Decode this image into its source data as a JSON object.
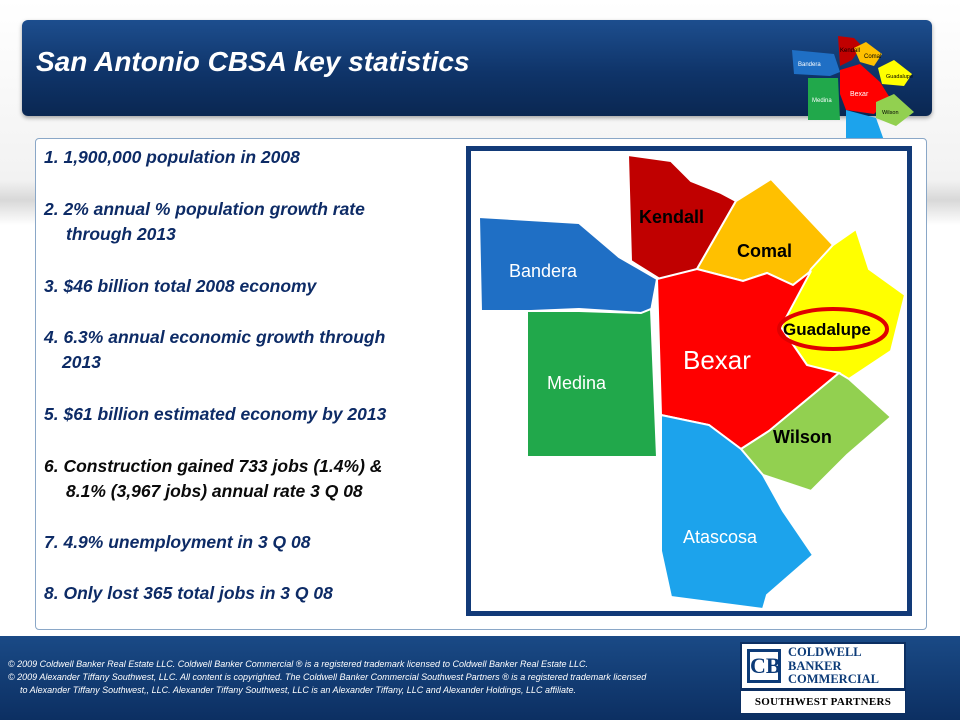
{
  "slide": {
    "title": "San Antonio CBSA key statistics"
  },
  "stats": [
    {
      "line1": "1. 1,900,000 population in 2008",
      "line2": ""
    },
    {
      "line1": "2. 2% annual % population growth rate",
      "line2": "through 2013"
    },
    {
      "line1": "3. $46 billion total 2008 economy",
      "line2": ""
    },
    {
      "line1": "4. 6.3% annual economic growth through",
      "line2": "2013"
    },
    {
      "line1": "5. $61 billion estimated economy by 2013",
      "line2": ""
    },
    {
      "line1": "6. Construction gained 733 jobs (1.4%) &",
      "line2": "8.1% (3,967 jobs) annual rate 3 Q 08"
    },
    {
      "line1": "7. 4.9% unemployment in 3 Q 08",
      "line2": ""
    },
    {
      "line1": "8. Only lost 365 total jobs in 3 Q 08",
      "line2": ""
    }
  ],
  "map": {
    "counties": {
      "kendall": {
        "name": "Kendall",
        "color": "#c00000"
      },
      "comal": {
        "name": "Comal",
        "color": "#ffc000"
      },
      "bandera": {
        "name": "Bandera",
        "color": "#1f6fc5"
      },
      "guadalupe": {
        "name": "Guadalupe",
        "color": "#ffff00"
      },
      "bexar": {
        "name": "Bexar",
        "color": "#ff0000"
      },
      "medina": {
        "name": "Medina",
        "color": "#21a84b"
      },
      "wilson": {
        "name": "Wilson",
        "color": "#92d050"
      },
      "atascosa": {
        "name": "Atascosa",
        "color": "#1ca3ec"
      }
    },
    "highlight_color": "#e00000"
  },
  "footer": {
    "line1": "© 2009 Coldwell Banker Real Estate LLC. Coldwell Banker Commercial ® is a registered trademark licensed to Coldwell Banker Real Estate LLC.",
    "line2": "© 2009 Alexander Tiffany Southwest, LLC. All content is copyrighted. The Coldwell Banker Commercial Southwest Partners ® is a registered trademark licensed",
    "line3": "to Alexander Tiffany Southwest,, LLC.  Alexander Tiffany Southwest, LLC is an Alexander Tiffany, LLC and Alexander Holdings, LLC affiliate."
  },
  "logo": {
    "mark": "CB",
    "word1": "COLDWELL",
    "word2": "BANKER",
    "word3": "COMMERCIAL",
    "sub": "SOUTHWEST PARTNERS"
  }
}
